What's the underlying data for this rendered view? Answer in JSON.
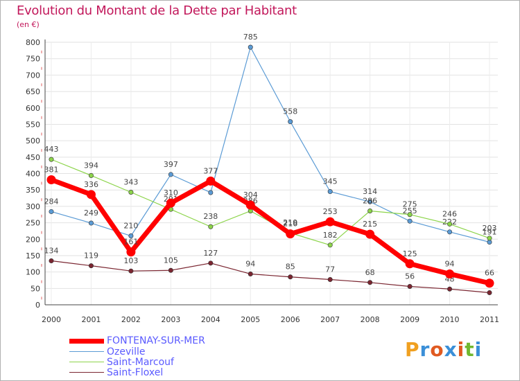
{
  "header": {
    "title": "Evolution du Montant de la Dette par Habitant",
    "unit": "(en €)"
  },
  "brand": {
    "text": "Proxiti",
    "colors": [
      "#f0a020",
      "#3a8fd8",
      "#e05a20",
      "#3a8fd8",
      "#e05a20",
      "#70b830",
      "#3a8fd8"
    ]
  },
  "chart_data": {
    "type": "line",
    "title": "Evolution du Montant de la Dette par Habitant",
    "subtitle": "(en €)",
    "xlabel": "",
    "ylabel": "",
    "x": [
      "2000",
      "2001",
      "2002",
      "2003",
      "2004",
      "2005",
      "2006",
      "2007",
      "2008",
      "2009",
      "2010",
      "2011"
    ],
    "ylim": [
      0,
      800
    ],
    "yticks": [
      0,
      50,
      100,
      150,
      200,
      250,
      300,
      350,
      400,
      450,
      500,
      550,
      600,
      650,
      700,
      750,
      800
    ],
    "grid": true,
    "legend": "bottom-left",
    "series": [
      {
        "name": "Ozeville",
        "color": "#5b9bd5",
        "values": [
          284,
          249,
          210,
          397,
          342,
          785,
          558,
          345,
          314,
          255,
          222,
          191
        ],
        "labels": [
          "284",
          "249",
          "210",
          "397",
          "",
          "785",
          "558",
          "345",
          "314",
          "255",
          "222",
          "191"
        ]
      },
      {
        "name": "Saint-Marcouf",
        "color": "#8cd44a",
        "values": [
          443,
          394,
          343,
          291,
          238,
          286,
          219,
          182,
          286,
          275,
          246,
          203
        ],
        "labels": [
          "443",
          "394",
          "343",
          "291",
          "238",
          "286",
          "219",
          "182",
          "286",
          "275",
          "246",
          "203"
        ]
      },
      {
        "name": "Saint-Floxel",
        "color": "#7a2530",
        "values": [
          134,
          119,
          103,
          105,
          127,
          94,
          85,
          77,
          68,
          56,
          48,
          37
        ],
        "labels": [
          "134",
          "119",
          "103",
          "105",
          "127",
          "94",
          "85",
          "77",
          "68",
          "56",
          "48",
          ""
        ]
      },
      {
        "name": "FONTENAY-SUR-MER",
        "color": "#ff0000",
        "values": [
          381,
          336,
          161,
          310,
          377,
          304,
          216,
          253,
          215,
          125,
          94,
          66
        ],
        "labels": [
          "381",
          "336",
          "161",
          "310",
          "377",
          "304",
          "216",
          "253",
          "215",
          "125",
          "94",
          "66"
        ]
      }
    ]
  },
  "legend_items": [
    {
      "name": "FONTENAY-SUR-MER",
      "color": "#ff0000",
      "text_color": "#5a5aff"
    },
    {
      "name": "Ozeville",
      "color": "#5b9bd5",
      "text_color": "#5a5aff"
    },
    {
      "name": "Saint-Marcouf",
      "color": "#8cd44a",
      "text_color": "#5a5aff"
    },
    {
      "name": "Saint-Floxel",
      "color": "#7a2530",
      "text_color": "#5a5aff"
    }
  ]
}
